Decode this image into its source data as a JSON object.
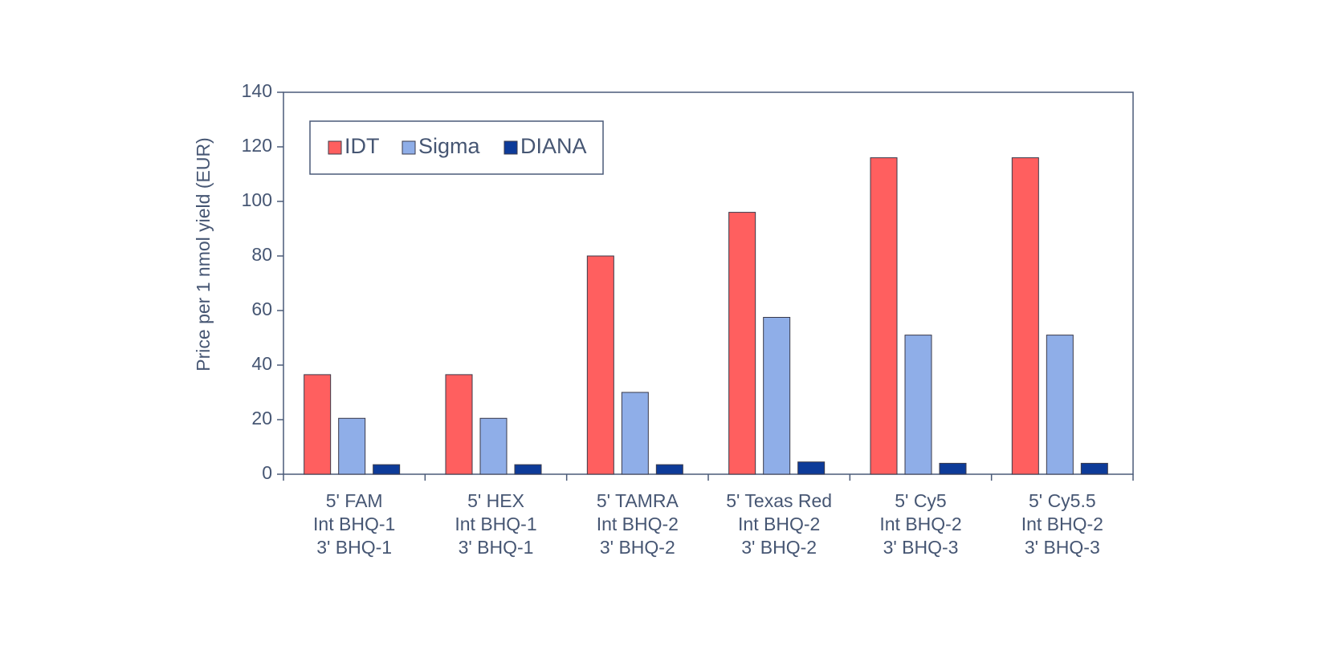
{
  "chart_data": {
    "type": "bar",
    "title": "",
    "xlabel": "",
    "ylabel": "Price per 1 nmol yield (EUR)",
    "ylim": [
      0,
      140
    ],
    "yticks": [
      0,
      20,
      40,
      60,
      80,
      100,
      120,
      140
    ],
    "grid": false,
    "legend_position": "top-left",
    "categories": [
      [
        "5' FAM",
        "Int BHQ-1",
        "3' BHQ-1"
      ],
      [
        "5' HEX",
        "Int BHQ-1",
        "3' BHQ-1"
      ],
      [
        "5' TAMRA",
        "Int BHQ-2",
        "3' BHQ-2"
      ],
      [
        "5' Texas Red",
        "Int BHQ-2",
        "3' BHQ-2"
      ],
      [
        "5' Cy5",
        "Int BHQ-2",
        "3' BHQ-3"
      ],
      [
        "5' Cy5.5",
        "Int BHQ-2",
        "3' BHQ-3"
      ]
    ],
    "series": [
      {
        "name": "IDT",
        "color": "#ff5f5f",
        "values": [
          36.5,
          36.5,
          80,
          96,
          116,
          116
        ]
      },
      {
        "name": "Sigma",
        "color": "#8faee8",
        "values": [
          20.5,
          20.5,
          30,
          57.5,
          51,
          51
        ]
      },
      {
        "name": "DIANA",
        "color": "#0d3b99",
        "values": [
          3.5,
          3.5,
          3.5,
          4.5,
          4,
          4
        ]
      }
    ]
  }
}
